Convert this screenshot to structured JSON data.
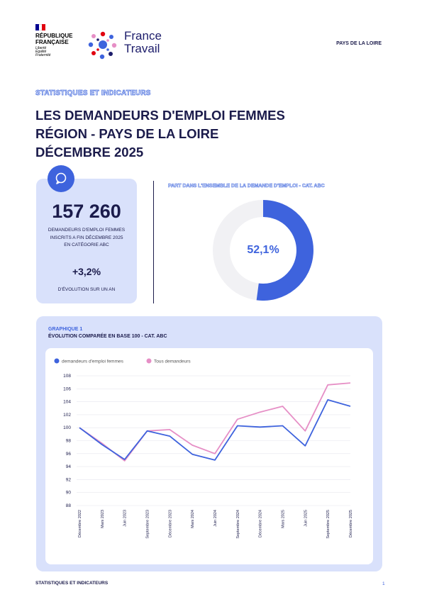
{
  "header": {
    "republique_line1": "RÉPUBLIQUE",
    "republique_line2": "FRANÇAISE",
    "motto": "Liberté Égalité Fraternité",
    "brand_line1": "France",
    "brand_line2": "Travail",
    "region": "PAYS DE LA LOIRE"
  },
  "kicker": "STATISTIQUES ET INDICATEURS",
  "title": {
    "line1": "LES DEMANDEURS D'EMPLOI FEMMES",
    "line2": "RÉGION - PAYS DE LA LOIRE",
    "line3": "DÉCEMBRE 2025"
  },
  "stat_card": {
    "icon": "chat-bubble-icon",
    "value": "157 260",
    "description": "DEMANDEURS D'EMPLOI FEMMES INSCRITS A FIN DÉCEMBRE 2025 EN CATÉGORIE ABC",
    "evolution": "+3,2%",
    "evolution_label": "D'ÉVOLUTION SUR UN AN"
  },
  "share": {
    "title": "PART DANS L'ENSEMBLE DE LA DEMANDE D'EMPLOI - CAT. ABC",
    "label": "52,1%",
    "value_percent": 52.1,
    "accent": "#3e63dd",
    "track": "#f1f1f4"
  },
  "graph": {
    "kicker": "GRAPHIQUE 1",
    "title": "ÉVOLUTION COMPARÉE EN BASE 100 - CAT. ABC"
  },
  "chart_data": {
    "type": "line",
    "title": "ÉVOLUTION COMPARÉE EN BASE 100 - CAT. ABC",
    "categories": [
      "Décembre 2022",
      "Mars 2023",
      "Juin 2023",
      "Septembre 2023",
      "Décembre 2023",
      "Mars 2024",
      "Juin 2024",
      "Septembre 2024",
      "Décembre 2024",
      "Mars 2025",
      "Juin 2025",
      "Septembre 2025",
      "Décembre 2025"
    ],
    "series": [
      {
        "name": "demandeurs d'emploi femmes",
        "color": "#3e63dd",
        "values": [
          100,
          97.4,
          95.1,
          99.5,
          98.7,
          95.9,
          95.0,
          100.3,
          100.1,
          100.3,
          97.2,
          104.3,
          103.3
        ]
      },
      {
        "name": "Tous demandeurs",
        "color": "#e68fc6",
        "values": [
          100,
          97.6,
          94.9,
          99.5,
          99.7,
          97.3,
          96.0,
          101.3,
          102.4,
          103.3,
          99.5,
          106.6,
          106.9
        ]
      }
    ],
    "yticks": [
      88,
      90,
      92,
      94,
      96,
      98,
      100,
      102,
      104,
      106,
      108
    ],
    "ylim": [
      88,
      108
    ],
    "legend": "top-left",
    "grid": true
  },
  "footer": {
    "left": "STATISTIQUES ET INDICATEURS",
    "page": "1"
  }
}
